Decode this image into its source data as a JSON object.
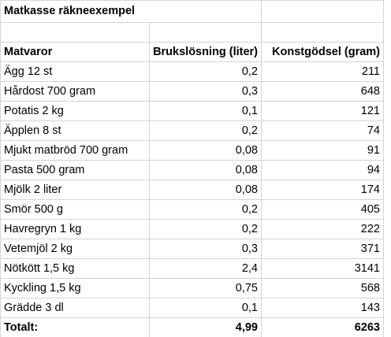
{
  "sheet": {
    "title": "Matkasse räkneexempel",
    "headers": {
      "col1": "Matvaror",
      "col2": "Brukslösning (liter)",
      "col3": "Konstgödsel (gram)"
    },
    "rows": [
      {
        "item": "Ägg 12 st",
        "liter": "0,2",
        "gram": "211"
      },
      {
        "item": "Hårdost 700 gram",
        "liter": "0,3",
        "gram": "648"
      },
      {
        "item": "Potatis 2 kg",
        "liter": "0,1",
        "gram": "121"
      },
      {
        "item": "Äpplen 8 st",
        "liter": "0,2",
        "gram": "74"
      },
      {
        "item": "Mjukt matbröd 700 gram",
        "liter": "0,08",
        "gram": "91"
      },
      {
        "item": "Pasta 500 gram",
        "liter": "0,08",
        "gram": "94"
      },
      {
        "item": "Mjölk 2 liter",
        "liter": "0,08",
        "gram": "174"
      },
      {
        "item": "Smör 500 g",
        "liter": "0,2",
        "gram": "405"
      },
      {
        "item": "Havregryn 1 kg",
        "liter": "0,2",
        "gram": "222"
      },
      {
        "item": "Vetemjöl 2 kg",
        "liter": "0,3",
        "gram": "371"
      },
      {
        "item": "Nötkött 1,5 kg",
        "liter": "2,4",
        "gram": "3141"
      },
      {
        "item": "Kyckling 1,5 kg",
        "liter": "0,75",
        "gram": "568"
      },
      {
        "item": "Grädde 3 dl",
        "liter": "0,1",
        "gram": "143"
      }
    ],
    "total": {
      "label": "Totalt:",
      "liter": "4,99",
      "gram": "6263"
    }
  }
}
